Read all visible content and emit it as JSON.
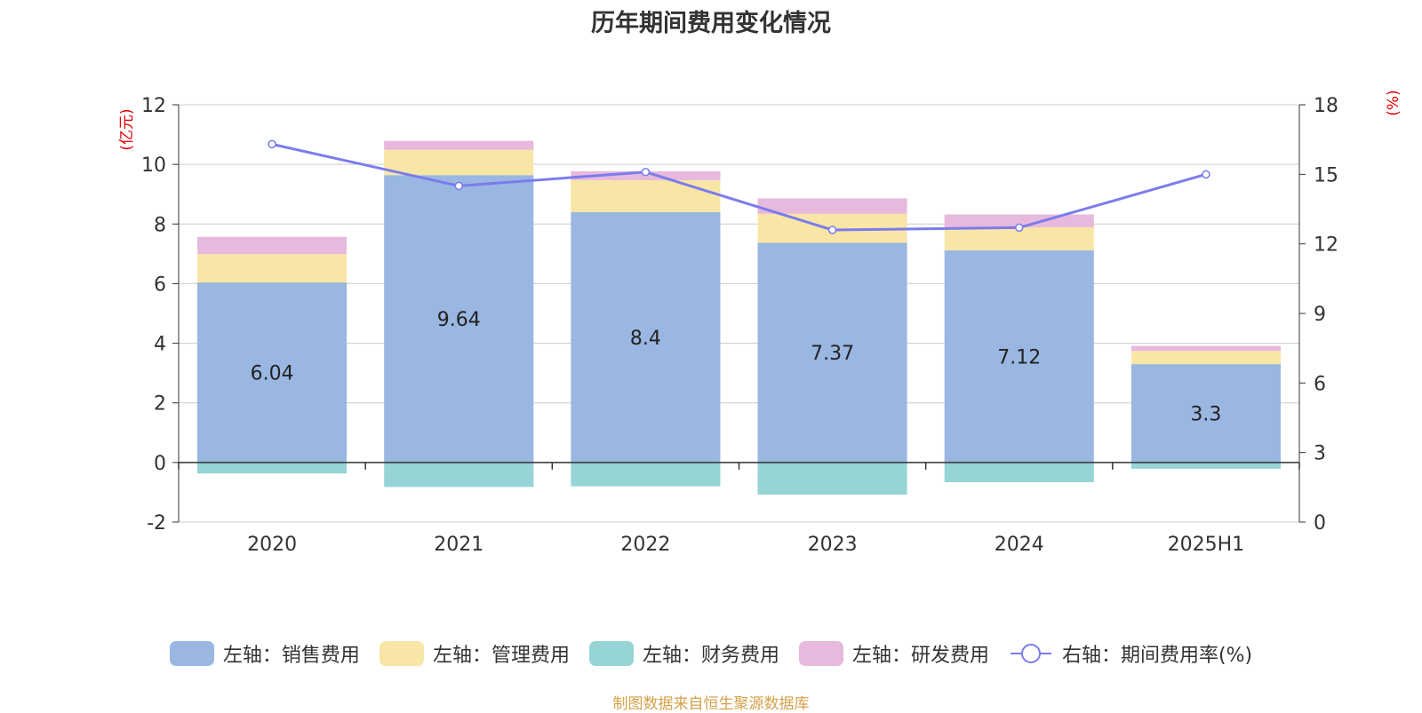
{
  "title": "历年期间费用变化情况",
  "footer": "制图数据来自恒生聚源数据库",
  "colors": {
    "sales": "#9ab7e2",
    "admin": "#f8e6a6",
    "finance": "#96d4d6",
    "rd": "#e7b9dc",
    "rate": "#7b7ced",
    "axis_unit": "#e00000",
    "footer": "#d4a24a",
    "grid": "#cccccc",
    "text": "#333333"
  },
  "chart_data": {
    "type": "bar",
    "title": "历年期间费用变化情况",
    "categories": [
      "2020",
      "2021",
      "2022",
      "2023",
      "2024",
      "2025H1"
    ],
    "left_axis": {
      "unit": "(亿元)",
      "ylim": [
        -2,
        12
      ],
      "ticks": [
        "-2",
        "0",
        "2",
        "4",
        "6",
        "8",
        "10",
        "12"
      ]
    },
    "right_axis": {
      "unit": "(%)",
      "ylim": [
        0,
        18
      ],
      "ticks": [
        "0",
        "3",
        "6",
        "9",
        "12",
        "15",
        "18"
      ]
    },
    "grid": true,
    "legend_position": "bottom",
    "series": [
      {
        "name": "左轴：销售费用",
        "key": "sales",
        "kind": "bar",
        "values": [
          6.04,
          9.64,
          8.4,
          7.37,
          7.12,
          3.3
        ],
        "labels": [
          "6.04",
          "9.64",
          "8.4",
          "7.37",
          "7.12",
          "3.3"
        ]
      },
      {
        "name": "左轴：管理费用",
        "key": "admin",
        "kind": "bar",
        "values": [
          0.95,
          0.85,
          1.07,
          0.97,
          0.77,
          0.44
        ]
      },
      {
        "name": "左轴：财务费用",
        "key": "finance",
        "kind": "bar",
        "values": [
          -0.37,
          -0.82,
          -0.8,
          -1.08,
          -0.66,
          -0.21
        ]
      },
      {
        "name": "左轴：研发费用",
        "key": "rd",
        "kind": "bar",
        "values": [
          0.58,
          0.3,
          0.3,
          0.52,
          0.43,
          0.17
        ]
      },
      {
        "name": "右轴：期间费用率(%)",
        "key": "rate",
        "kind": "line",
        "values": [
          16.3,
          14.5,
          15.1,
          12.6,
          12.7,
          15.0
        ]
      }
    ]
  }
}
